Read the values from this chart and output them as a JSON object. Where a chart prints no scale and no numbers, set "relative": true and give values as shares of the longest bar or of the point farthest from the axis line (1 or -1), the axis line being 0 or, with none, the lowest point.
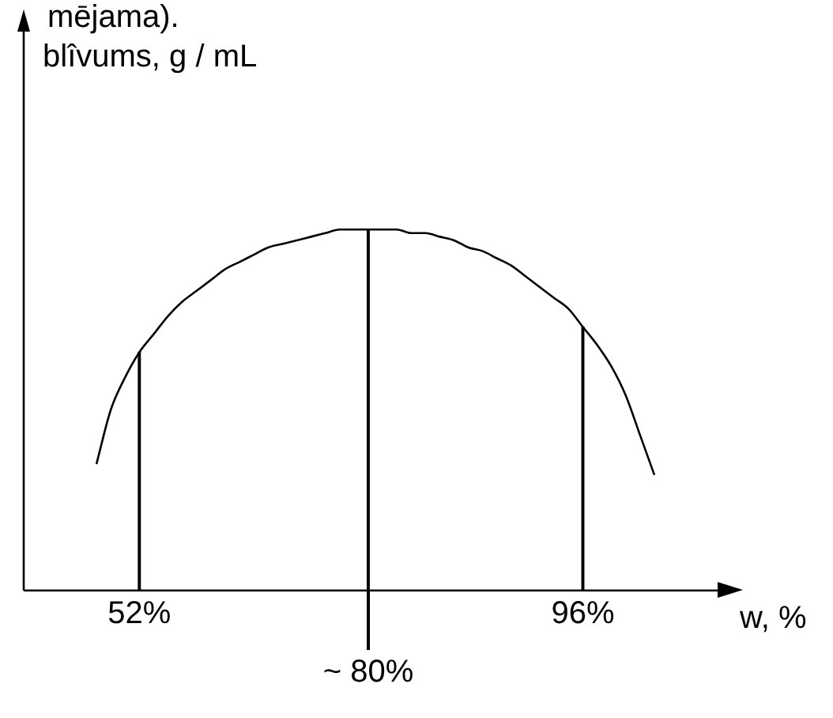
{
  "chart_data": {
    "type": "line",
    "relative": true,
    "ylabel": "blîvums, g / mL",
    "xlabel": "w, %",
    "annotations": [
      "mējama)."
    ],
    "categories": [
      null,
      null,
      null,
      "52%",
      null,
      null,
      null,
      null,
      null,
      null,
      null,
      null,
      null,
      null,
      null,
      null,
      null,
      null,
      null,
      "~ 80%",
      null,
      null,
      null,
      null,
      null,
      null,
      null,
      null,
      null,
      null,
      null,
      null,
      null,
      null,
      "96%",
      null,
      null,
      null,
      null,
      null
    ],
    "series": [
      {
        "color": "#000000",
        "values": [
          0.35,
          0.5,
          0.59,
          0.66,
          0.71,
          0.76,
          0.8,
          0.83,
          0.86,
          0.89,
          0.91,
          0.93,
          0.95,
          0.96,
          0.97,
          0.98,
          0.99,
          1.0,
          1.0,
          1.0,
          1.0,
          1.0,
          0.99,
          0.99,
          0.98,
          0.97,
          0.95,
          0.94,
          0.92,
          0.9,
          0.87,
          0.84,
          0.81,
          0.78,
          0.73,
          0.68,
          0.62,
          0.54,
          0.43,
          0.32
        ]
      },
      {
        "type": "bar",
        "color": "#000000",
        "values": [
          null,
          null,
          null,
          0.66,
          null,
          null,
          null,
          null,
          null,
          null,
          null,
          null,
          null,
          null,
          null,
          null,
          null,
          null,
          null,
          1.0,
          null,
          null,
          null,
          null,
          null,
          null,
          null,
          null,
          null,
          null,
          null,
          null,
          null,
          null,
          0.73,
          null,
          null,
          null,
          null,
          null
        ]
      }
    ],
    "legend": false,
    "marker": "none",
    "line_style": "solid"
  }
}
